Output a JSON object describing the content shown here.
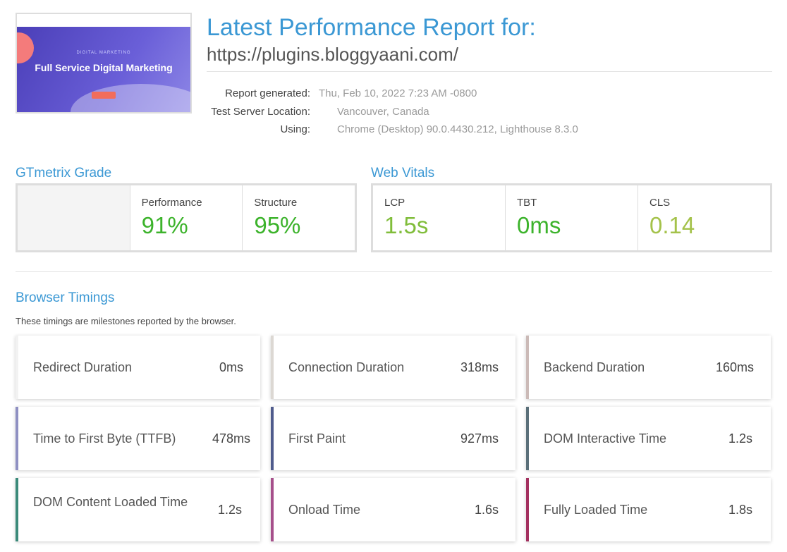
{
  "thumbnail": {
    "kicker": "DIGITAL MARKETING",
    "headline": "Full Service Digital Marketing"
  },
  "header": {
    "title": "Latest Performance Report for:",
    "url": "https://plugins.bloggyaani.com/"
  },
  "report_info": [
    {
      "label": "Report generated:",
      "value": "Thu, Feb 10, 2022 7:23 AM -0800"
    },
    {
      "label": "Test Server Location:",
      "value": "Vancouver, Canada"
    },
    {
      "label": "Using:",
      "value": "Chrome (Desktop) 90.0.4430.212, Lighthouse 8.3.0"
    }
  ],
  "gtmetrix_grade": {
    "title": "GTmetrix Grade",
    "metrics": [
      {
        "label": "Performance",
        "value": "91%"
      },
      {
        "label": "Structure",
        "value": "95%"
      }
    ]
  },
  "web_vitals": {
    "title": "Web Vitals",
    "metrics": [
      {
        "label": "LCP",
        "value": "1.5s"
      },
      {
        "label": "TBT",
        "value": "0ms"
      },
      {
        "label": "CLS",
        "value": "0.14"
      }
    ]
  },
  "browser_timings": {
    "title": "Browser Timings",
    "description": "These timings are milestones reported by the browser.",
    "items": [
      {
        "label": "Redirect Duration",
        "value": "0ms"
      },
      {
        "label": "Connection Duration",
        "value": "318ms"
      },
      {
        "label": "Backend Duration",
        "value": "160ms"
      },
      {
        "label": "Time to First Byte (TTFB)",
        "value": "478ms"
      },
      {
        "label": "First Paint",
        "value": "927ms"
      },
      {
        "label": "DOM Interactive Time",
        "value": "1.2s"
      },
      {
        "label": "DOM Content Loaded Time",
        "value": "1.2s"
      },
      {
        "label": "Onload Time",
        "value": "1.6s"
      },
      {
        "label": "Fully Loaded Time",
        "value": "1.8s"
      }
    ]
  }
}
